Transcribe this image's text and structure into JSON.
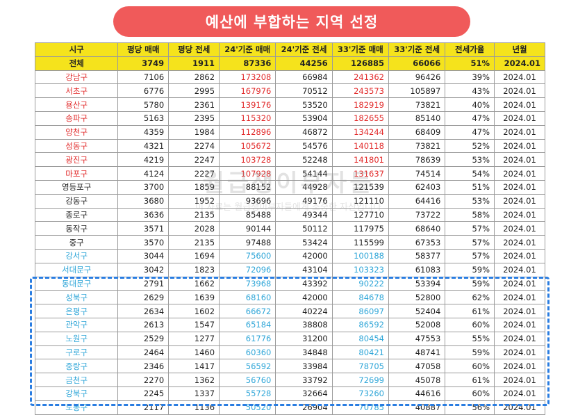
{
  "title": "예산에 부합하는 지역 선정",
  "watermark": {
    "main": "월급쟁이부자들",
    "sub": "이 자료는 월급쟁이부자들에게 소중한 자산입니다"
  },
  "colors": {
    "title_bg": "#f05a5a",
    "header_bg": "#f5e31c",
    "red": "#e22b2b",
    "blue": "#2fa6d8",
    "highlight": "#2a7de1"
  },
  "table": {
    "headers": [
      "시구",
      "평당 매매",
      "평당 전세",
      "24'기준 매매",
      "24'기준 전세",
      "33'기준 매매",
      "33'기준 전세",
      "전세가율",
      "년월"
    ],
    "total": [
      "전체",
      "3749",
      "1911",
      "87336",
      "44256",
      "126885",
      "66066",
      "51%",
      "2024.01"
    ],
    "rows": [
      {
        "name": "강남구",
        "color": "red",
        "values": [
          "7106",
          "2862",
          "173208",
          "66984",
          "241362",
          "96426",
          "39%",
          "2024.01"
        ]
      },
      {
        "name": "서초구",
        "color": "red",
        "values": [
          "6776",
          "2995",
          "167976",
          "70512",
          "243573",
          "105897",
          "43%",
          "2024.01"
        ]
      },
      {
        "name": "용산구",
        "color": "red",
        "values": [
          "5780",
          "2361",
          "139176",
          "53520",
          "182919",
          "73821",
          "40%",
          "2024.01"
        ]
      },
      {
        "name": "송파구",
        "color": "red",
        "values": [
          "5163",
          "2395",
          "115320",
          "53904",
          "182655",
          "85140",
          "47%",
          "2024.01"
        ]
      },
      {
        "name": "양천구",
        "color": "red",
        "values": [
          "4359",
          "1984",
          "112896",
          "46872",
          "134244",
          "68409",
          "47%",
          "2024.01"
        ]
      },
      {
        "name": "성동구",
        "color": "red",
        "values": [
          "4321",
          "2274",
          "105672",
          "54576",
          "140118",
          "73821",
          "52%",
          "2024.01"
        ]
      },
      {
        "name": "광진구",
        "color": "red",
        "values": [
          "4219",
          "2247",
          "103728",
          "52248",
          "141801",
          "78639",
          "53%",
          "2024.01"
        ]
      },
      {
        "name": "마포구",
        "color": "red",
        "values": [
          "4124",
          "2227",
          "107928",
          "54144",
          "131637",
          "74514",
          "54%",
          "2024.01"
        ]
      },
      {
        "name": "영등포구",
        "color": "black",
        "values": [
          "3700",
          "1859",
          "88152",
          "44928",
          "121539",
          "62403",
          "51%",
          "2024.01"
        ]
      },
      {
        "name": "강동구",
        "color": "black",
        "values": [
          "3680",
          "1952",
          "93696",
          "49176",
          "121110",
          "64416",
          "53%",
          "2024.01"
        ]
      },
      {
        "name": "종로구",
        "color": "black",
        "values": [
          "3636",
          "2135",
          "85488",
          "49344",
          "127710",
          "73722",
          "58%",
          "2024.01"
        ]
      },
      {
        "name": "동작구",
        "color": "black",
        "values": [
          "3571",
          "2028",
          "90144",
          "50112",
          "117975",
          "68640",
          "57%",
          "2024.01"
        ]
      },
      {
        "name": "중구",
        "color": "black",
        "values": [
          "3570",
          "2135",
          "97488",
          "53424",
          "115599",
          "67353",
          "57%",
          "2024.01"
        ]
      },
      {
        "name": "강서구",
        "color": "blue",
        "values": [
          "3044",
          "1694",
          "75600",
          "42000",
          "100188",
          "58377",
          "57%",
          "2024.01"
        ]
      },
      {
        "name": "서대문구",
        "color": "blue",
        "values": [
          "3042",
          "1823",
          "72096",
          "43104",
          "103323",
          "61083",
          "59%",
          "2024.01"
        ]
      },
      {
        "name": "동대문구",
        "color": "blue",
        "values": [
          "2791",
          "1662",
          "73968",
          "43392",
          "90222",
          "53394",
          "59%",
          "2024.01"
        ]
      },
      {
        "name": "성북구",
        "color": "blue",
        "values": [
          "2629",
          "1639",
          "68160",
          "42000",
          "84678",
          "52800",
          "62%",
          "2024.01"
        ]
      },
      {
        "name": "은평구",
        "color": "blue",
        "values": [
          "2634",
          "1602",
          "66672",
          "40224",
          "86097",
          "52404",
          "61%",
          "2024.01"
        ]
      },
      {
        "name": "관악구",
        "color": "blue",
        "values": [
          "2613",
          "1547",
          "65184",
          "38808",
          "86592",
          "52008",
          "60%",
          "2024.01"
        ]
      },
      {
        "name": "노원구",
        "color": "blue",
        "values": [
          "2529",
          "1277",
          "61776",
          "31200",
          "80454",
          "47553",
          "55%",
          "2024.01"
        ]
      },
      {
        "name": "구로구",
        "color": "blue",
        "values": [
          "2464",
          "1460",
          "60360",
          "34848",
          "80421",
          "48741",
          "59%",
          "2024.01"
        ]
      },
      {
        "name": "중랑구",
        "color": "blue",
        "values": [
          "2346",
          "1417",
          "56592",
          "33984",
          "78705",
          "47058",
          "60%",
          "2024.01"
        ]
      },
      {
        "name": "금천구",
        "color": "blue",
        "values": [
          "2270",
          "1362",
          "56760",
          "33792",
          "72699",
          "45078",
          "61%",
          "2024.01"
        ]
      },
      {
        "name": "강북구",
        "color": "blue",
        "values": [
          "2245",
          "1337",
          "55728",
          "32664",
          "73260",
          "44616",
          "60%",
          "2024.01"
        ]
      },
      {
        "name": "도봉구",
        "color": "blue",
        "values": [
          "2117",
          "1136",
          "50520",
          "26904",
          "70785",
          "40887",
          "56%",
          "2024.01"
        ]
      }
    ]
  }
}
